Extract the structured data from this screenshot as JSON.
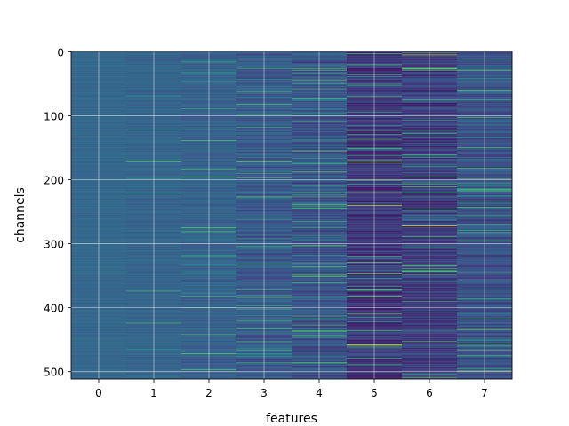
{
  "chart_data": {
    "type": "heatmap",
    "title": "",
    "xlabel": "features",
    "ylabel": "channels",
    "x_categories": [
      "0",
      "1",
      "2",
      "3",
      "4",
      "5",
      "6",
      "7"
    ],
    "y_tick_labels": [
      "0",
      "100",
      "200",
      "300",
      "400",
      "500"
    ],
    "y_ticks": [
      0,
      100,
      200,
      300,
      400,
      500
    ],
    "xlim": [
      -0.5,
      7.5
    ],
    "ylim": [
      511.5,
      -0.5
    ],
    "rows": 512,
    "columns": 8,
    "grid": true,
    "colormap": "viridis",
    "colormap_stops": [
      "#440154",
      "#3b528b",
      "#21918c",
      "#5ec962",
      "#fde725"
    ],
    "column_stats": [
      {
        "feature": 0,
        "mean": 0.33,
        "spread": 0.02,
        "spike_rate": 0.0
      },
      {
        "feature": 1,
        "mean": 0.32,
        "spread": 0.04,
        "spike_rate": 0.02
      },
      {
        "feature": 2,
        "mean": 0.31,
        "spread": 0.06,
        "spike_rate": 0.04
      },
      {
        "feature": 3,
        "mean": 0.28,
        "spread": 0.09,
        "spike_rate": 0.07
      },
      {
        "feature": 4,
        "mean": 0.26,
        "spread": 0.1,
        "spike_rate": 0.08
      },
      {
        "feature": 5,
        "mean": 0.16,
        "spread": 0.1,
        "spike_rate": 0.07
      },
      {
        "feature": 6,
        "mean": 0.18,
        "spread": 0.11,
        "spike_rate": 0.08
      },
      {
        "feature": 7,
        "mean": 0.25,
        "spread": 0.1,
        "spike_rate": 0.08
      }
    ],
    "notable_cells": [
      {
        "feature": 5,
        "channel": 172,
        "value": 0.95
      },
      {
        "feature": 5,
        "channel": 240,
        "value": 0.9
      },
      {
        "feature": 5,
        "channel": 458,
        "value": 0.92
      },
      {
        "feature": 6,
        "channel": 5,
        "value": 0.88
      },
      {
        "feature": 6,
        "channel": 272,
        "value": 0.95
      },
      {
        "feature": 3,
        "channel": 372,
        "value": 0.6
      },
      {
        "feature": 4,
        "channel": 437,
        "value": 0.7
      },
      {
        "feature": 7,
        "channel": 282,
        "value": 0.6
      }
    ]
  }
}
